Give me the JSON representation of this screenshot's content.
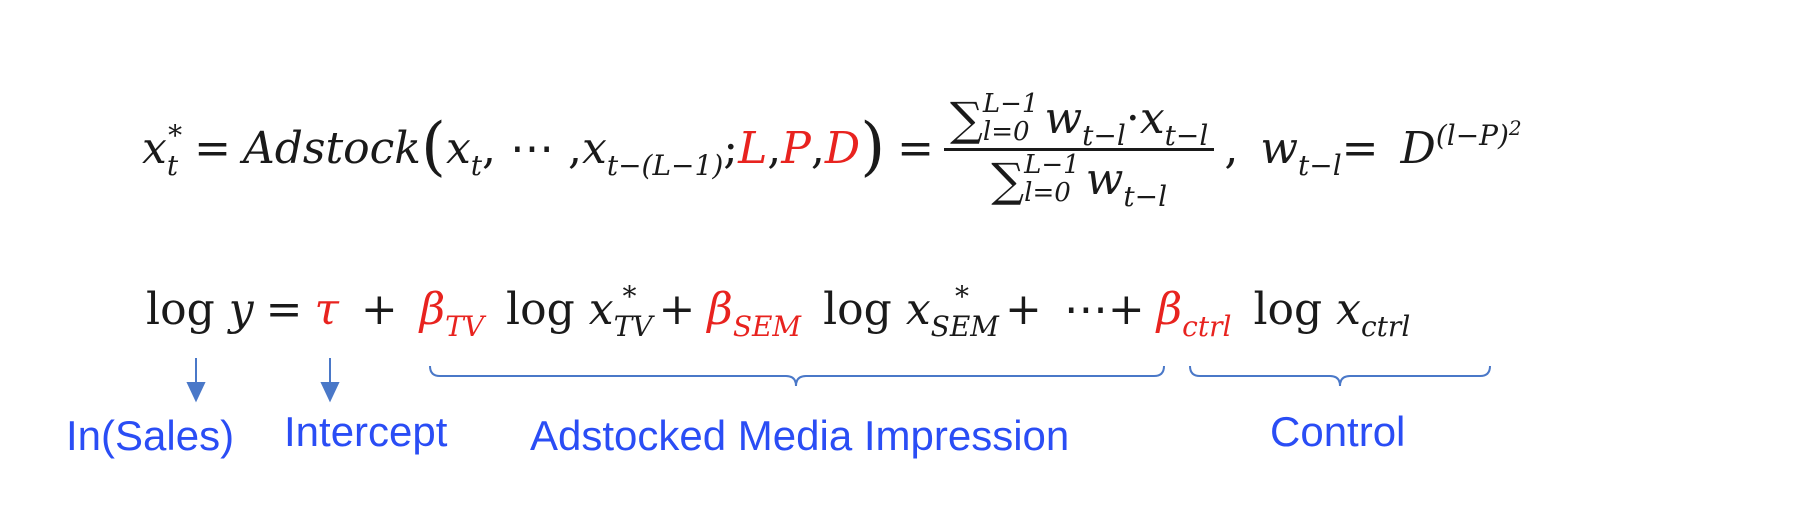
{
  "equation_1": {
    "lhs": "x",
    "lhs_sub": "t",
    "lhs_sup": "*",
    "equals": "=",
    "func": "Adstock",
    "x_t": "x",
    "t_sub": "t",
    "ellipsis": ", ⋯ , ",
    "x_tl": "x",
    "tl_sub": "t−(L−1)",
    "semicolon": ";",
    "param_L": "L",
    "param_P": "P",
    "param_D": "D",
    "comma": ",",
    "num_sigma": "∑",
    "num_upper": "L−1",
    "num_lower": "l=0",
    "num_w": "w",
    "num_w_sub": "t−l",
    "num_dot": " · ",
    "num_x": "x",
    "num_x_sub": "t−l",
    "den_sigma": "∑",
    "den_upper": "L−1",
    "den_lower": "l=0",
    "den_w": "w",
    "den_w_sub": "t−l",
    "sep": ",",
    "w_lhs": "w",
    "w_sub": "t−l",
    "w_equals": "=",
    "D": "D",
    "D_sup": "(l−P)",
    "D_sup2": "2"
  },
  "equation_2": {
    "log": "log",
    "y": "y",
    "equals": "=",
    "tau": "τ",
    "plus": "+",
    "beta_tv": "β",
    "beta_tv_sub": "TV",
    "log_tv": "log",
    "x_tv": "x",
    "x_tv_sub": "TV",
    "x_tv_sup": "*",
    "beta_sem": "β",
    "beta_sem_sub": "SEM",
    "log_sem": "log",
    "x_sem": "x",
    "x_sem_sub": "SEM",
    "x_sem_sup": "*",
    "dots": "⋯",
    "beta_ctrl": "β",
    "beta_ctrl_sub": "ctrl",
    "log_ctrl": "log",
    "x_ctrl": "x",
    "x_ctrl_sub": "ctrl"
  },
  "annotations": {
    "sales": "In(Sales)",
    "intercept": "Intercept",
    "media": "Adstocked Media Impression",
    "control": "Control"
  },
  "colors": {
    "parameter": "#e8231f",
    "annotation": "#2a4df5",
    "arrow": "#4a78c8",
    "text": "#1a1a1a"
  }
}
